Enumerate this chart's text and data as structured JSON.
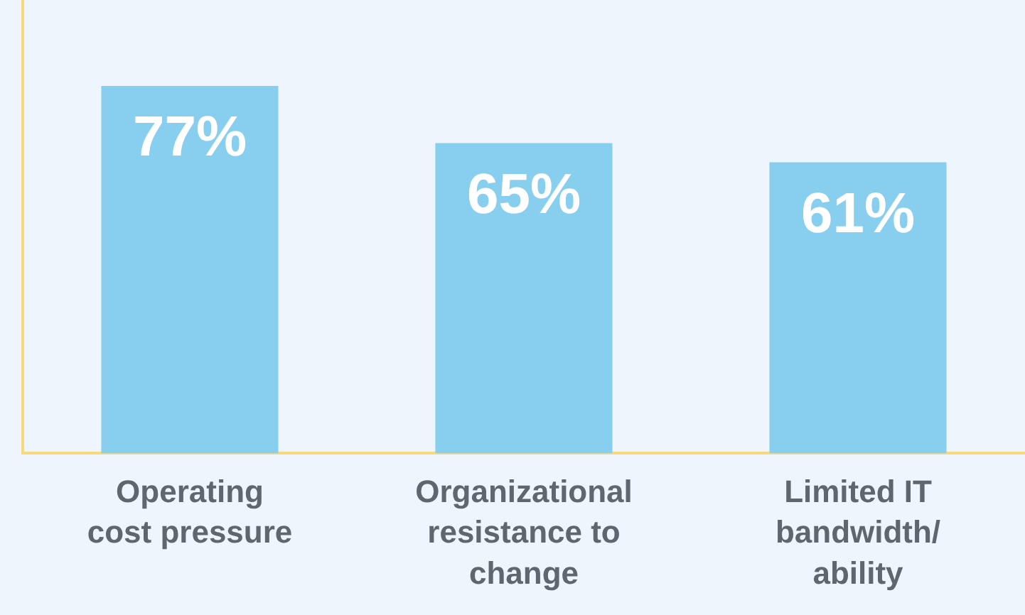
{
  "chart_data": {
    "type": "bar",
    "categories": [
      "Operating cost pressure",
      "Organizational resistance to change",
      "Limited IT bandwidth/ ability"
    ],
    "values": [
      77,
      65,
      61
    ],
    "color": "#88cfef",
    "ylim": [
      0,
      95
    ],
    "data_labels": true,
    "value_labels": [
      "77%",
      "65%",
      "61%"
    ],
    "tick_labels": "x"
  }
}
